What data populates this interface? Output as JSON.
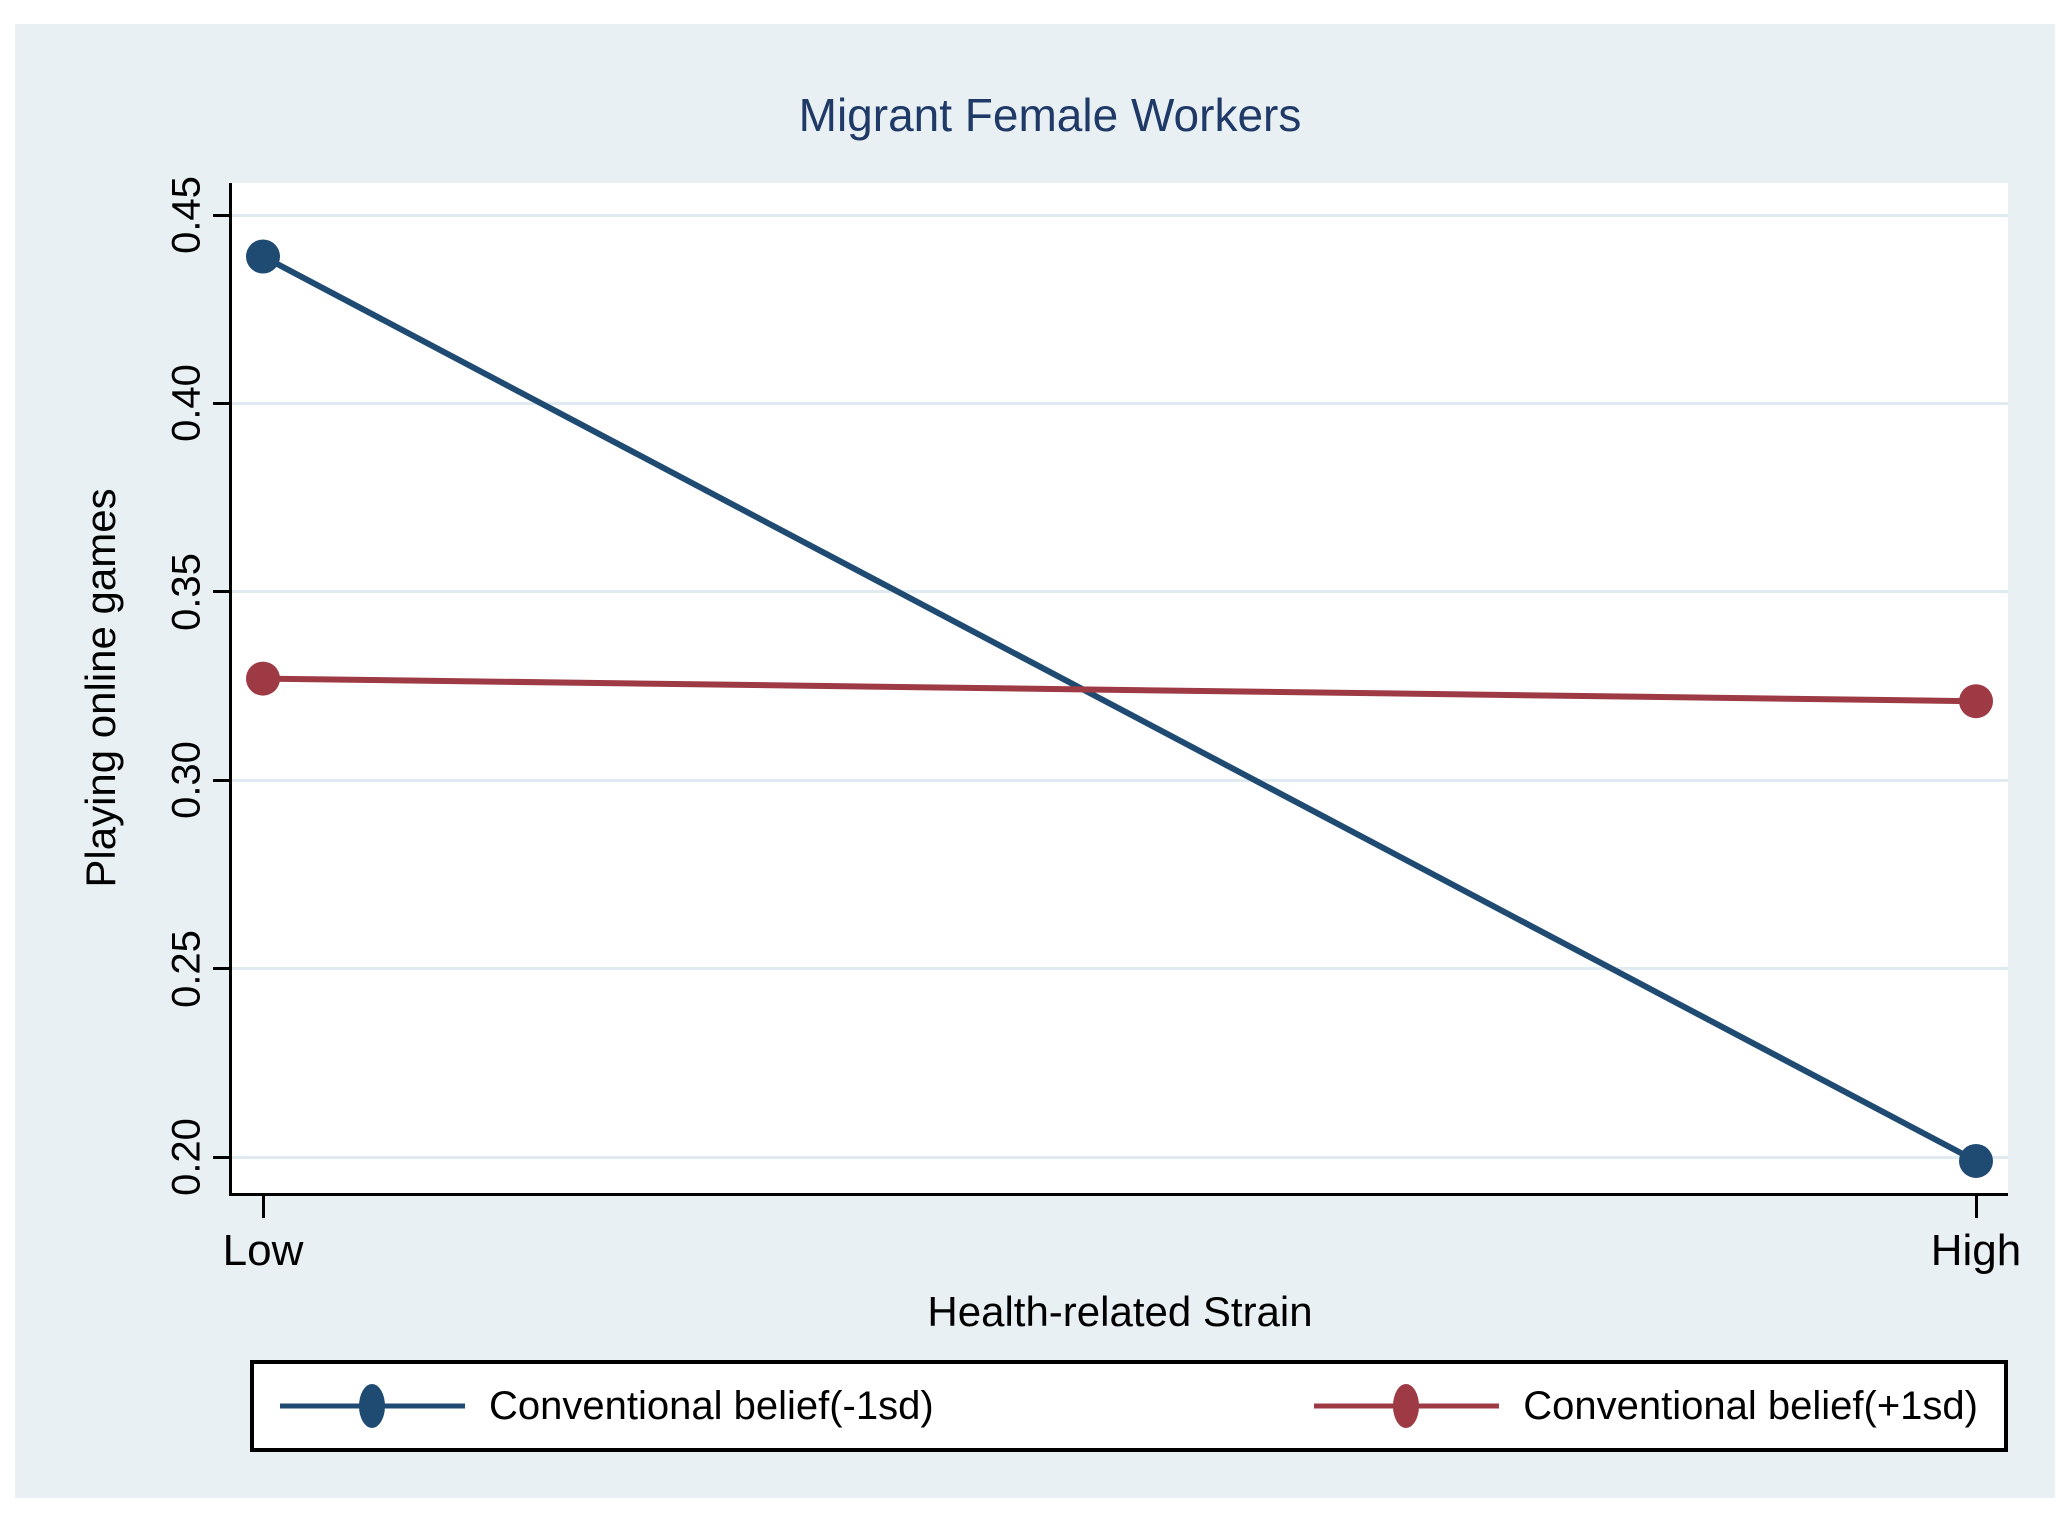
{
  "title": "Migrant Female Workers",
  "colors": {
    "canvas_bg": "#e9f0f3",
    "plot_bg": "#ffffff",
    "gridline": "#dfeaf1",
    "axis": "#000000",
    "title_text": "#1f3a67",
    "navy_series": "#1f4b73",
    "maroon_series": "#9d3a44"
  },
  "chart_data": {
    "type": "line",
    "title": "Migrant Female Workers",
    "xlabel": "Health-related Strain",
    "ylabel": "Playing online games",
    "categories": [
      "Low",
      "High"
    ],
    "series": [
      {
        "name": "Conventional belief(-1sd)",
        "values": [
          0.439,
          0.199
        ],
        "color": "#1f4b73"
      },
      {
        "name": "Conventional belief(+1sd)",
        "values": [
          0.327,
          0.321
        ],
        "color": "#9d3a44"
      }
    ],
    "yticks": [
      0.2,
      0.25,
      0.3,
      0.35,
      0.4,
      0.45
    ],
    "ylim": [
      0.1905,
      0.4585
    ],
    "grid": true,
    "legend_position": "bottom"
  }
}
